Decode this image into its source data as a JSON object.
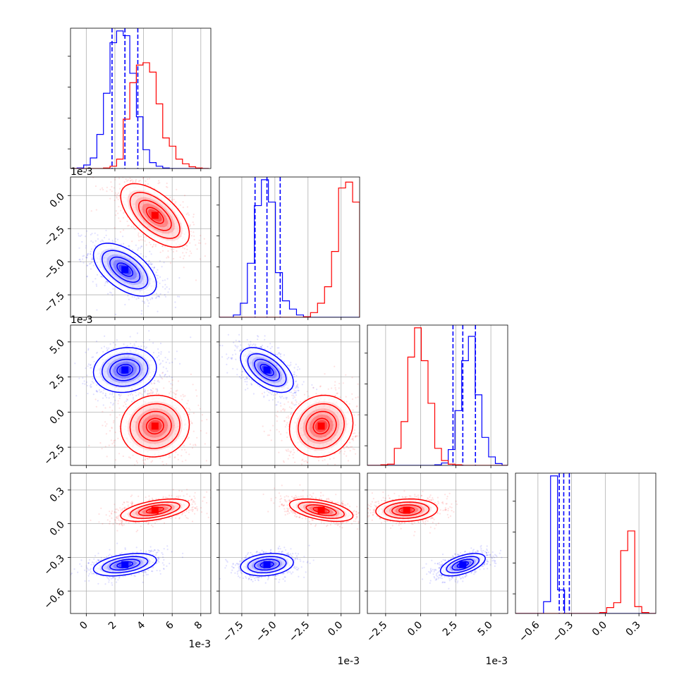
{
  "chart_data": {
    "type": "corner",
    "parameters": 4,
    "colors": {
      "blue": "#0000ff",
      "red": "#ff0000",
      "grid": "#b0b0b0",
      "axes": "#000000"
    },
    "axis_ranges": [
      [
        -0.0011,
        0.0087
      ],
      [
        -0.0092,
        0.0014
      ],
      [
        -0.0038,
        0.0062
      ],
      [
        -0.8,
        0.45
      ]
    ],
    "ticks": [
      {
        "values": [
          0,
          0.002,
          0.004,
          0.006,
          0.008
        ],
        "labels": [
          "0",
          "2",
          "4",
          "6",
          "8"
        ],
        "offset_text": "1e-3"
      },
      {
        "values": [
          -0.0075,
          -0.005,
          -0.0025,
          0
        ],
        "labels": [
          "−7.5",
          "−5.0",
          "−2.5",
          "0.0"
        ],
        "offset_text": "1e-3"
      },
      {
        "values": [
          -0.0025,
          0,
          0.0025,
          0.005
        ],
        "labels": [
          "−2.5",
          "0.0",
          "2.5",
          "5.0"
        ],
        "offset_text": "1e-3"
      },
      {
        "values": [
          -0.6,
          -0.3,
          0,
          0.3
        ],
        "labels": [
          "−0.6",
          "−0.3",
          "0.0",
          "0.3"
        ],
        "offset_text": ""
      }
    ],
    "series": [
      {
        "color": "blue",
        "quantiles": [
          [
            0.0018,
            0.0027,
            0.0036
          ],
          [
            -0.0065,
            -0.0056,
            -0.0046
          ],
          [
            0.0023,
            0.003,
            0.0039
          ],
          [
            -0.41,
            -0.37,
            -0.32
          ]
        ],
        "hist1d": [
          {
            "start": -0.0011,
            "step": 0.00046,
            "counts": [
              0,
              0.5,
              3,
              9,
              29,
              64,
              107,
              117,
              113,
              81,
              44,
              16,
              5,
              2,
              0.5,
              0,
              0,
              0,
              0,
              0,
              0
            ]
          },
          {
            "start": -0.0092,
            "step": 0.00053,
            "counts": [
              0,
              0,
              2,
              12,
              46,
              95,
              117,
              98,
              38,
              14,
              7,
              2,
              0.5,
              0,
              0,
              0,
              0,
              0,
              0,
              0
            ]
          },
          {
            "start": -0.0038,
            "step": 0.00048,
            "counts": [
              0,
              0,
              0,
              0,
              0,
              0,
              0,
              0,
              0,
              0,
              0.5,
              2,
              13,
              45,
              86,
              106,
              58,
              23,
              7,
              1.5,
              0
            ]
          },
          {
            "start": -0.8,
            "step": 0.0625,
            "counts": [
              0,
              0,
              0,
              0,
              0.6,
              7,
              1.2,
              0,
              0,
              0,
              0,
              0,
              0,
              0,
              0,
              0,
              0,
              0,
              0,
              0
            ]
          }
        ],
        "centers": [
          0.0027,
          -0.0056,
          0.003,
          -0.365
        ],
        "spreads": [
          0.0011,
          0.001,
          0.0008,
          0.05
        ],
        "correlations": [
          [
            1,
            -0.55,
            0.1,
            0.4
          ],
          [
            -0.55,
            1,
            -0.55,
            0.2
          ],
          [
            0.1,
            -0.55,
            1,
            0.55
          ],
          [
            0.4,
            0.2,
            0.55,
            1
          ]
        ]
      },
      {
        "color": "red",
        "quantiles": [],
        "hist1d": [
          {
            "start": -0.0011,
            "step": 0.00046,
            "counts": [
              0,
              0,
              0,
              0,
              0,
              0.5,
              2,
              8,
              42,
              73,
              88,
              90,
              82,
              55,
              26,
              19,
              8,
              4,
              1.5,
              0.5,
              0
            ]
          },
          {
            "start": -0.0092,
            "step": 0.00053,
            "counts": [
              0,
              0,
              0,
              0,
              0,
              0,
              0,
              0,
              0,
              0,
              0,
              0,
              0.5,
              4,
              12,
              26,
              56,
              110,
              115,
              98
            ]
          },
          {
            "start": -0.0038,
            "step": 0.00048,
            "counts": [
              0,
              0,
              0.5,
              1,
              14,
              36,
              89,
              113,
              86,
              51,
              14,
              4,
              1,
              0.5,
              0,
              0,
              0,
              0,
              0,
              0,
              0
            ]
          },
          {
            "start": -0.8,
            "step": 0.0625,
            "counts": [
              0,
              0,
              0,
              0,
              0,
              0,
              0,
              0,
              0,
              0,
              0,
              0,
              0.05,
              0.3,
              0.55,
              3.2,
              4.2,
              0.35,
              0.05,
              0
            ]
          }
        ],
        "centers": [
          0.0048,
          -0.0015,
          -0.001,
          0.12
        ],
        "spreads": [
          0.0012,
          0.0012,
          0.0011,
          0.05
        ],
        "correlations": [
          [
            1,
            -0.6,
            0.05,
            0.5
          ],
          [
            -0.6,
            1,
            0.1,
            -0.5
          ],
          [
            0.05,
            0.1,
            1,
            0.1
          ],
          [
            0.5,
            -0.5,
            0.1,
            1
          ]
        ]
      }
    ],
    "legend": null,
    "title": "",
    "grid": true
  }
}
